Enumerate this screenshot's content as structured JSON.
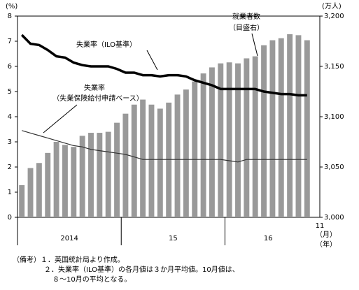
{
  "chart_data": {
    "type": "bar-line",
    "categories": [
      null,
      null,
      null,
      null,
      null,
      null,
      null,
      null,
      null,
      null,
      null,
      null,
      null,
      null,
      null,
      null,
      null,
      null,
      null,
      null,
      null,
      null,
      null,
      null,
      null,
      null,
      null,
      null,
      null,
      null,
      null,
      null,
      null,
      null
    ],
    "year_groups": [
      {
        "label": "2014",
        "count": 12
      },
      {
        "label": "15",
        "count": 12
      },
      {
        "label": "16",
        "count": 10
      }
    ],
    "x_end_label": "11",
    "x_unit_labels": [
      "（月）",
      "（年）"
    ],
    "series": [
      {
        "name": "就業者数（目盛右）",
        "axis": "y2",
        "kind": "bar",
        "color": "#999999",
        "values": [
          3032,
          3049,
          3054,
          3064,
          3075,
          3072,
          3070,
          3081,
          3084,
          3084,
          3085,
          3094,
          3103,
          3112,
          3117,
          3112,
          3108,
          3114,
          3122,
          3127,
          3135,
          3143,
          3149,
          3153,
          3154,
          3153,
          3158,
          3160,
          3171,
          3176,
          3178,
          3182,
          3181,
          3176
        ]
      },
      {
        "name": "失業率（ILO基準）",
        "kind": "line",
        "color": "#000000",
        "width": 3.5,
        "values": [
          7.25,
          6.9,
          6.85,
          6.65,
          6.4,
          6.35,
          6.15,
          6.05,
          6.0,
          6.0,
          6.0,
          5.9,
          5.75,
          5.75,
          5.65,
          5.65,
          5.6,
          5.65,
          5.65,
          5.6,
          5.45,
          5.35,
          5.25,
          5.1,
          5.1,
          5.1,
          5.1,
          5.1,
          5.0,
          4.95,
          4.9,
          4.9,
          4.85,
          4.85
        ]
      },
      {
        "name": "失業率（失業保険給付申請ベース）",
        "kind": "line",
        "color": "#333333",
        "width": 1.2,
        "values": [
          3.45,
          3.35,
          3.25,
          3.15,
          3.05,
          2.95,
          2.85,
          2.8,
          2.7,
          2.65,
          2.6,
          2.55,
          2.5,
          2.4,
          2.3,
          2.3,
          2.3,
          2.3,
          2.3,
          2.3,
          2.3,
          2.3,
          2.3,
          2.3,
          2.25,
          2.2,
          2.3,
          2.3,
          2.3,
          2.3,
          2.3,
          2.3,
          2.3,
          2.3
        ]
      }
    ],
    "annotations": [
      {
        "lines": [
          "就業者数",
          "（目盛右）"
        ]
      },
      {
        "lines": [
          "失業率（ILO基準）"
        ]
      },
      {
        "lines": [
          "失業率",
          "（失業保険給付申請ベース）"
        ]
      }
    ],
    "y_unit": "(%)",
    "y2_unit": "(万人)",
    "ylim": [
      0,
      8
    ],
    "yticks": [
      0,
      1,
      2,
      3,
      4,
      5,
      6,
      7,
      8
    ],
    "y2lim": [
      3000,
      3200
    ],
    "y2ticks": [
      {
        "value": 3000,
        "label": "3,000"
      },
      {
        "value": 3050,
        "label": "3,050"
      },
      {
        "value": 3100,
        "label": "3,100"
      },
      {
        "value": 3150,
        "label": "3,150"
      },
      {
        "value": 3200,
        "label": "3,200"
      }
    ]
  },
  "notes": [
    "（備考）１．英国統計局より作成。",
    "２．失業率（ILO基準）の各月値は３か月平均値。10月値は、",
    "８～10月の平均となる。"
  ]
}
